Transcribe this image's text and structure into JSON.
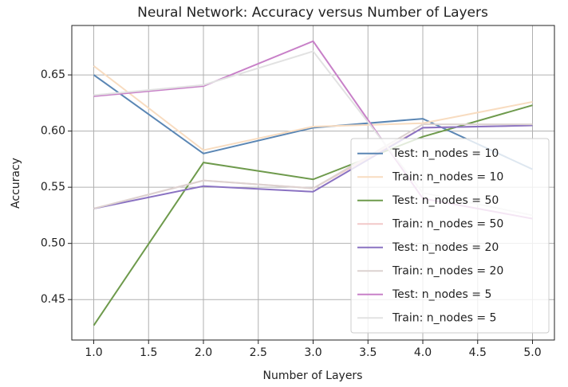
{
  "chart_data": {
    "type": "line",
    "title": "Neural Network: Accuracy versus Number of Layers",
    "x_label": "Number of Layers",
    "y_label": "Accuracy",
    "x": [
      1,
      2,
      3,
      4,
      5
    ],
    "series": [
      {
        "name": "Test: n_nodes = 10",
        "color": "#5a86b4",
        "values": [
          0.65,
          0.58,
          0.603,
          0.611,
          0.566
        ]
      },
      {
        "name": "Train: n_nodes = 10",
        "color": "#f8dcc0",
        "values": [
          0.658,
          0.583,
          0.604,
          0.607,
          0.626
        ]
      },
      {
        "name": "Test: n_nodes = 50",
        "color": "#6e9a4c",
        "values": [
          0.427,
          0.572,
          0.557,
          0.595,
          0.623
        ]
      },
      {
        "name": "Train: n_nodes = 50",
        "color": "#f2c8c8",
        "values": [
          0.531,
          0.556,
          0.549,
          0.603,
          0.605
        ]
      },
      {
        "name": "Test: n_nodes = 20",
        "color": "#8a72c2",
        "values": [
          0.531,
          0.551,
          0.546,
          0.603,
          0.605
        ]
      },
      {
        "name": "Train: n_nodes = 20",
        "color": "#dcd2d0",
        "values": [
          0.531,
          0.556,
          0.549,
          0.606,
          0.606
        ]
      },
      {
        "name": "Test: n_nodes = 5",
        "color": "#c880c8",
        "values": [
          0.631,
          0.64,
          0.68,
          0.54,
          0.522
        ]
      },
      {
        "name": "Train: n_nodes = 5",
        "color": "#e2e2e2",
        "values": [
          0.632,
          0.641,
          0.671,
          0.545,
          0.525
        ]
      }
    ],
    "xlim": [
      0.8,
      5.2
    ],
    "xticks": [
      {
        "value": 1,
        "label": "1.0"
      },
      1.5,
      {
        "value": 2,
        "label": "2.0"
      },
      2.5,
      {
        "value": 3,
        "label": "3.0"
      },
      3.5,
      {
        "value": 4,
        "label": "4.0"
      },
      4.5,
      {
        "value": 5,
        "label": "5.0"
      }
    ],
    "ylim": [
      0.414,
      0.694
    ],
    "yticks": [
      0.45,
      {
        "value": 0.5,
        "label": "0.50"
      },
      0.55,
      {
        "value": 0.6,
        "label": "0.60"
      },
      0.65
    ],
    "grid": true,
    "legend": "lower right"
  }
}
